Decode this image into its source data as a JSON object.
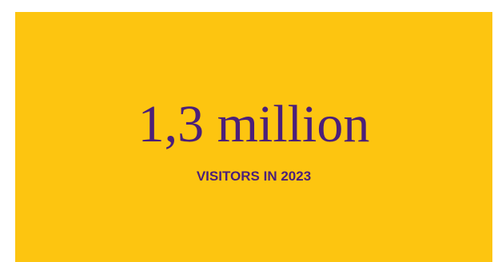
{
  "stat": {
    "value": "1,3 million",
    "label": "VISITORS IN 2023"
  },
  "colors": {
    "background": "#fdc510",
    "text": "#4b1f7a"
  }
}
